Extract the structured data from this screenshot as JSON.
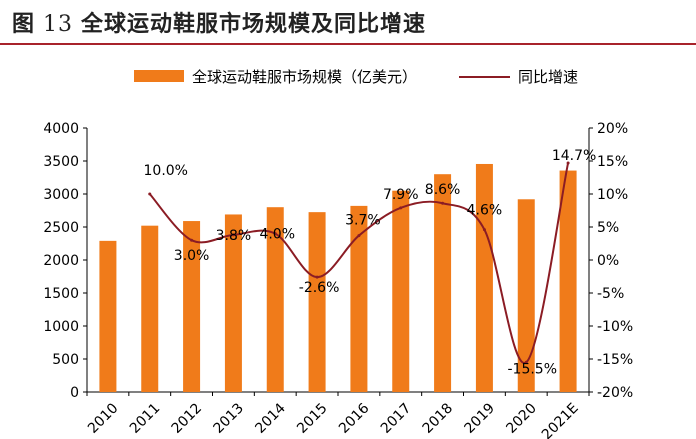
{
  "figure": {
    "label": "图",
    "number": "13",
    "title": "全球运动鞋服市场规模及同比增速"
  },
  "colors": {
    "bar": "#f07b1a",
    "line": "#8b1c24",
    "rule": "#a8232b"
  },
  "chart_data": {
    "type": "bar",
    "categories": [
      "2010",
      "2011",
      "2012",
      "2013",
      "2014",
      "2015",
      "2016",
      "2017",
      "2018",
      "2019",
      "2020",
      "2021E"
    ],
    "series": [
      {
        "name": "全球运动鞋服市场规模（亿美元）",
        "type": "bar",
        "axis": "left",
        "values": [
          2290,
          2520,
          2590,
          2690,
          2800,
          2725,
          2820,
          3050,
          3300,
          3455,
          2920,
          3355
        ]
      },
      {
        "name": "同比增速",
        "type": "line",
        "axis": "right",
        "values": [
          null,
          10.0,
          3.0,
          3.8,
          4.0,
          -2.6,
          3.7,
          7.9,
          8.6,
          4.6,
          -15.5,
          14.7
        ],
        "labels": [
          "",
          "10.0%",
          "3.0%",
          "3.8%",
          "4.0%",
          "-2.6%",
          "3.7%",
          "7.9%",
          "8.6%",
          "4.6%",
          "-15.5%",
          "14.7%"
        ]
      }
    ],
    "y_left": {
      "min": 0,
      "max": 4000,
      "step": 500,
      "ticks": [
        "0",
        "500",
        "1000",
        "1500",
        "2000",
        "2500",
        "3000",
        "3500",
        "4000"
      ]
    },
    "y_right": {
      "min": -20,
      "max": 20,
      "step": 5,
      "ticks": [
        "-20%",
        "-15%",
        "-10%",
        "-5%",
        "0%",
        "5%",
        "10%",
        "15%",
        "20%"
      ]
    },
    "legend_position": "top",
    "grid": false
  }
}
